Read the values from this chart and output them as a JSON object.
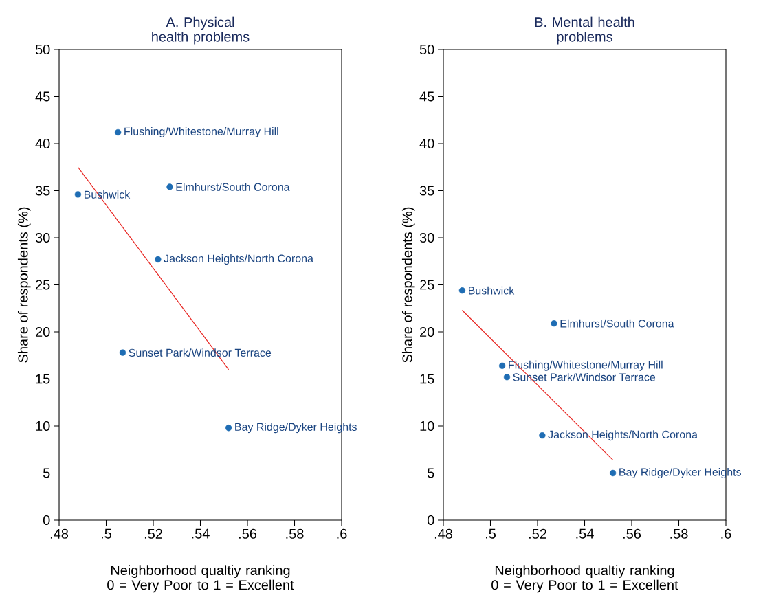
{
  "chart_data": [
    {
      "type": "scatter",
      "title": "A. Physical health problems",
      "xlabel": "Neighborhood qualtiy ranking 0 = Very Poor to 1 = Excellent",
      "ylabel": "Share of respondents (%)",
      "xlim": [
        0.48,
        0.6
      ],
      "ylim": [
        0,
        50
      ],
      "xticks": [
        {
          "value": 0.48,
          "label": ".48"
        },
        {
          "value": 0.5,
          "label": ".5"
        },
        {
          "value": 0.52,
          "label": ".52"
        },
        {
          "value": 0.54,
          "label": ".54"
        },
        {
          "value": 0.56,
          "label": ".56"
        },
        {
          "value": 0.58,
          "label": ".58"
        },
        {
          "value": 0.6,
          "label": ".6"
        }
      ],
      "yticks": [
        0,
        5,
        10,
        15,
        20,
        25,
        30,
        35,
        40,
        45,
        50
      ],
      "series": [
        {
          "color": "#1f6db4",
          "marker": "circle",
          "x": [
            0.505,
            0.488,
            0.527,
            0.522,
            0.507,
            0.552
          ],
          "values": [
            41.2,
            34.6,
            35.4,
            27.7,
            17.8,
            9.8
          ]
        },
        {
          "type": "line",
          "color": "#e8221e",
          "marker": "none",
          "x": [
            0.488,
            0.552
          ],
          "values": [
            37.5,
            16.0
          ]
        }
      ],
      "annotations": [
        {
          "text": "Flushing/Whitestone/Murray Hill",
          "x": 0.505,
          "y": 41.2
        },
        {
          "text": "Bushwick",
          "x": 0.488,
          "y": 34.6
        },
        {
          "text": "Elmhurst/South Corona",
          "x": 0.527,
          "y": 35.4
        },
        {
          "text": "Jackson Heights/North Corona",
          "x": 0.522,
          "y": 27.7
        },
        {
          "text": "Sunset Park/Windsor Terrace",
          "x": 0.507,
          "y": 17.8
        },
        {
          "text": "Bay Ridge/Dyker Heights",
          "x": 0.552,
          "y": 9.8
        }
      ]
    },
    {
      "type": "scatter",
      "title": "B. Mental health problems",
      "xlabel": "Neighborhood qualtiy ranking 0 = Very Poor to 1 = Excellent",
      "ylabel": "Share of respondents (%)",
      "xlim": [
        0.48,
        0.6
      ],
      "ylim": [
        0,
        50
      ],
      "xticks": [
        {
          "value": 0.48,
          "label": ".48"
        },
        {
          "value": 0.5,
          "label": ".5"
        },
        {
          "value": 0.52,
          "label": ".52"
        },
        {
          "value": 0.54,
          "label": ".54"
        },
        {
          "value": 0.56,
          "label": ".56"
        },
        {
          "value": 0.58,
          "label": ".58"
        },
        {
          "value": 0.6,
          "label": ".6"
        }
      ],
      "yticks": [
        0,
        5,
        10,
        15,
        20,
        25,
        30,
        35,
        40,
        45,
        50
      ],
      "series": [
        {
          "color": "#1f6db4",
          "marker": "circle",
          "x": [
            0.488,
            0.527,
            0.505,
            0.507,
            0.522,
            0.552
          ],
          "values": [
            24.4,
            20.9,
            16.4,
            15.2,
            9.0,
            5.0
          ]
        },
        {
          "type": "line",
          "color": "#e8221e",
          "marker": "none",
          "x": [
            0.488,
            0.552
          ],
          "values": [
            22.3,
            6.4
          ]
        }
      ],
      "annotations": [
        {
          "text": "Bushwick",
          "x": 0.488,
          "y": 24.4
        },
        {
          "text": "Elmhurst/South Corona",
          "x": 0.527,
          "y": 20.9
        },
        {
          "text": "Flushing/Whitestone/Murray Hill",
          "x": 0.505,
          "y": 16.4
        },
        {
          "text": "Sunset Park/Windsor Terrace",
          "x": 0.507,
          "y": 15.2
        },
        {
          "text": "Jackson Heights/North Corona",
          "x": 0.522,
          "y": 9.0
        },
        {
          "text": "Bay Ridge/Dyker Heights",
          "x": 0.552,
          "y": 5.0
        }
      ]
    }
  ]
}
